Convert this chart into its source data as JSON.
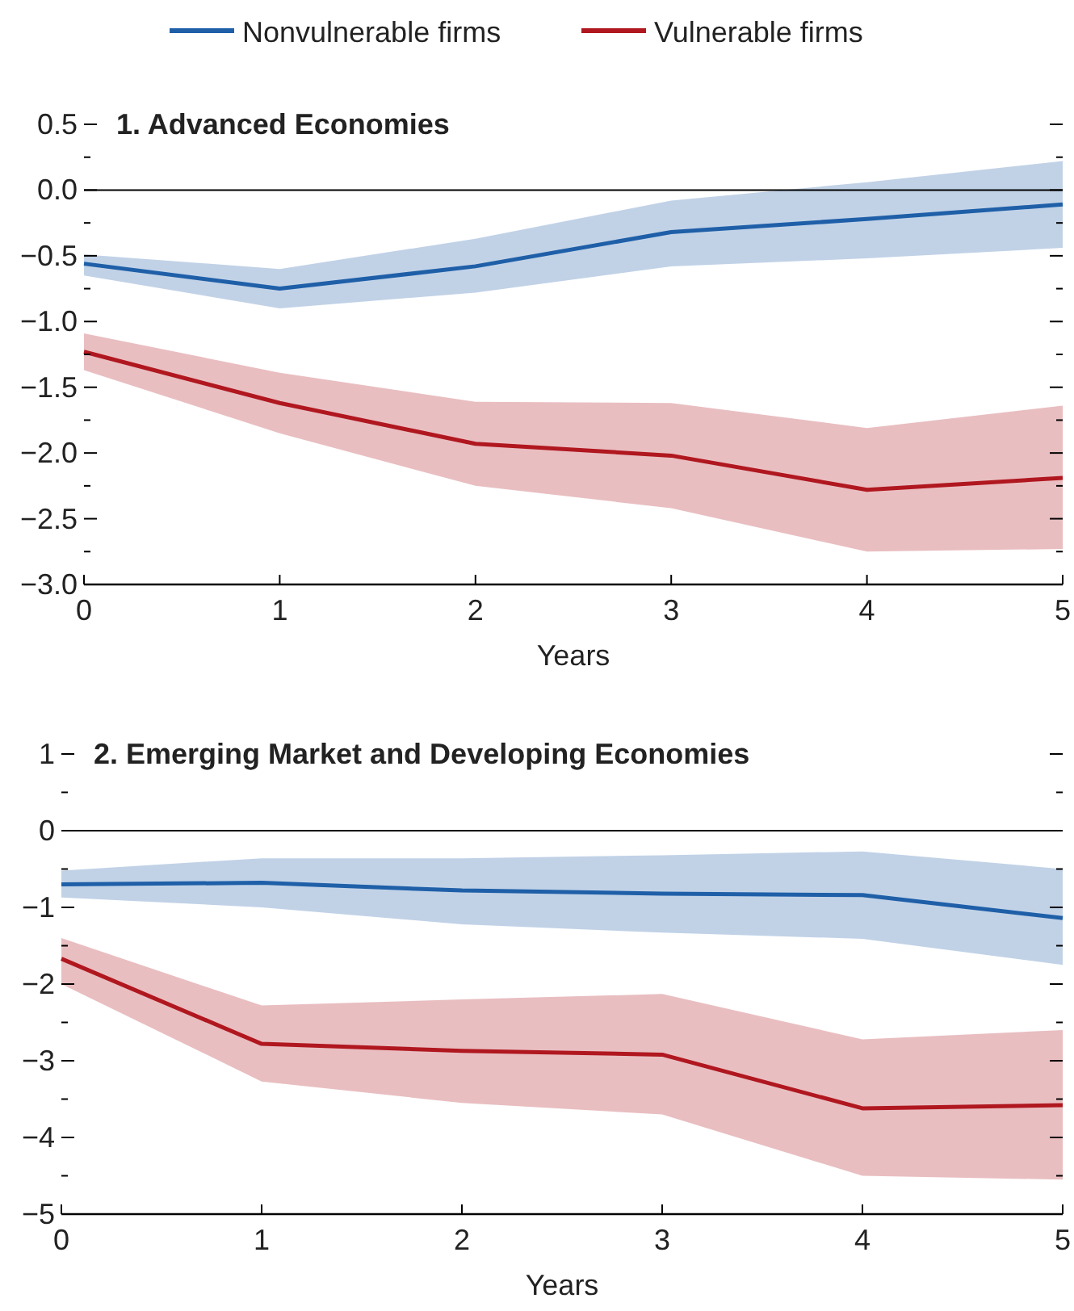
{
  "chart_data": [
    {
      "type": "line",
      "title": "1. Advanced Economies",
      "xlabel": "Years",
      "x": [
        0,
        1,
        2,
        3,
        4,
        5
      ],
      "xlim": [
        0,
        5
      ],
      "xticks": [
        0,
        1,
        2,
        3,
        4,
        5
      ],
      "ylim": [
        -3.0,
        0.5
      ],
      "yticks": [
        {
          "value": -3.0,
          "label": "−3.0"
        },
        {
          "value": -2.75,
          "label": null
        },
        {
          "value": -2.5,
          "label": "−2.5"
        },
        {
          "value": -2.25,
          "label": null
        },
        {
          "value": -2.0,
          "label": "−2.0"
        },
        {
          "value": -1.75,
          "label": null
        },
        {
          "value": -1.5,
          "label": "−1.5"
        },
        {
          "value": -1.25,
          "label": null
        },
        {
          "value": -1.0,
          "label": "−1.0"
        },
        {
          "value": -0.75,
          "label": null
        },
        {
          "value": -0.5,
          "label": "−0.5"
        },
        {
          "value": -0.25,
          "label": null
        },
        {
          "value": 0,
          "label": "0.0"
        },
        {
          "value": 0.25,
          "label": null
        },
        {
          "value": 0.5,
          "label": "0.5"
        }
      ],
      "ref_lines": [
        {
          "axis": "y",
          "value": 0,
          "color": "#000000"
        }
      ],
      "legend": "top",
      "grid": false,
      "series": [
        {
          "name": "Nonvulnerable firms",
          "color": "#1f5fa8",
          "values": [
            -0.56,
            -0.75,
            -0.58,
            -0.32,
            -0.22,
            -0.11
          ],
          "lower": [
            -0.65,
            -0.9,
            -0.78,
            -0.58,
            -0.52,
            -0.44
          ],
          "upper": [
            -0.49,
            -0.6,
            -0.37,
            -0.08,
            0.06,
            0.22
          ]
        },
        {
          "name": "Vulnerable firms",
          "color": "#b0171f",
          "values": [
            -1.23,
            -1.62,
            -1.93,
            -2.02,
            -2.28,
            -2.19
          ],
          "lower": [
            -1.37,
            -1.85,
            -2.25,
            -2.42,
            -2.75,
            -2.73
          ],
          "upper": [
            -1.09,
            -1.39,
            -1.61,
            -1.62,
            -1.81,
            -1.64
          ]
        }
      ]
    },
    {
      "type": "line",
      "title": "2. Emerging Market and Developing Economies",
      "xlabel": "Years",
      "x": [
        0,
        1,
        2,
        3,
        4,
        5
      ],
      "xlim": [
        0,
        5
      ],
      "xticks": [
        0,
        1,
        2,
        3,
        4,
        5
      ],
      "ylim": [
        -5,
        1
      ],
      "yticks": [
        {
          "value": -5,
          "label": "−5"
        },
        {
          "value": -4.5,
          "label": null
        },
        {
          "value": -4,
          "label": "−4"
        },
        {
          "value": -3.5,
          "label": null
        },
        {
          "value": -3,
          "label": "−3"
        },
        {
          "value": -2.5,
          "label": null
        },
        {
          "value": -2,
          "label": "−2"
        },
        {
          "value": -1.5,
          "label": null
        },
        {
          "value": -1,
          "label": "−1"
        },
        {
          "value": -0.5,
          "label": null
        },
        {
          "value": 0,
          "label": "0"
        },
        {
          "value": 0.5,
          "label": null
        },
        {
          "value": 1,
          "label": "1"
        }
      ],
      "ref_lines": [
        {
          "axis": "y",
          "value": 0,
          "color": "#000000"
        }
      ],
      "grid": false,
      "series": [
        {
          "color": "#1f5fa8",
          "values": [
            -0.7,
            -0.68,
            -0.78,
            -0.82,
            -0.84,
            -1.14
          ],
          "lower": [
            -0.87,
            -1.0,
            -1.22,
            -1.33,
            -1.41,
            -1.75
          ],
          "upper": [
            -0.52,
            -0.36,
            -0.36,
            -0.32,
            -0.27,
            -0.5
          ]
        },
        {
          "color": "#b0171f",
          "values": [
            -1.67,
            -2.78,
            -2.87,
            -2.92,
            -3.62,
            -3.58
          ],
          "lower": [
            -2.0,
            -3.27,
            -3.55,
            -3.7,
            -4.5,
            -4.55
          ],
          "upper": [
            -1.4,
            -2.28,
            -2.2,
            -2.13,
            -2.72,
            -2.6
          ]
        }
      ]
    }
  ]
}
